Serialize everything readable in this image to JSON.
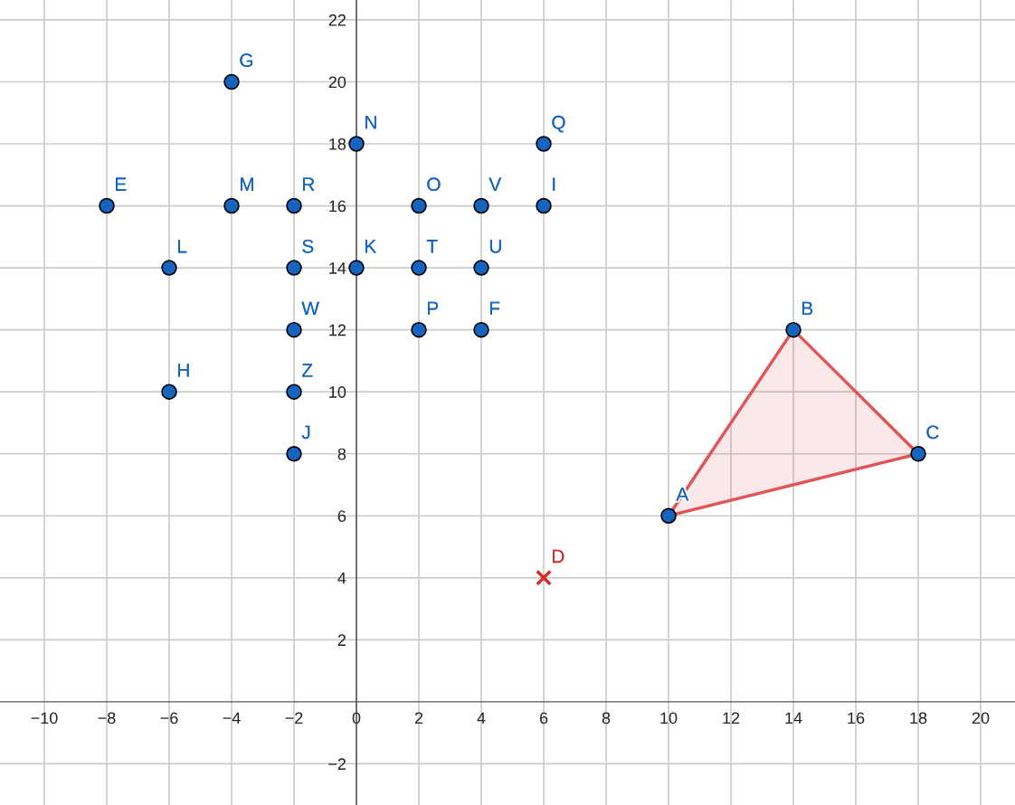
{
  "chart_data": {
    "type": "scatter",
    "xlim": [
      -11.42,
      21.1
    ],
    "ylim": [
      -3.33,
      22.64
    ],
    "xticks": [
      {
        "value": -10,
        "label": "−10"
      },
      {
        "value": -8,
        "label": "−8"
      },
      {
        "value": -6,
        "label": "−6"
      },
      {
        "value": -4,
        "label": "−4"
      },
      {
        "value": -2,
        "label": "−2"
      },
      0,
      2,
      4,
      6,
      8,
      10,
      12,
      14,
      16,
      18,
      20
    ],
    "yticks": [
      {
        "value": -2,
        "label": "−2"
      },
      2,
      4,
      6,
      8,
      10,
      12,
      14,
      16,
      18,
      20,
      22
    ],
    "grid": true,
    "series": [
      {
        "type": "area",
        "color": "#e05555",
        "x": [
          10,
          14,
          18,
          10
        ],
        "values": [
          6,
          12,
          8,
          6
        ]
      },
      {
        "color": "#1565c0",
        "marker": "circle",
        "x": [
          10,
          14,
          18,
          -8,
          4,
          -4,
          -6,
          6,
          -2,
          0,
          -6,
          -4,
          0,
          2,
          2,
          6,
          -2,
          -2,
          2,
          4,
          4,
          -2,
          -2
        ],
        "values": [
          6,
          12,
          8,
          16,
          12,
          20,
          10,
          16,
          8,
          14,
          14,
          16,
          18,
          16,
          12,
          18,
          16,
          14,
          14,
          14,
          16,
          12,
          10
        ]
      },
      {
        "color": "#d32f2f",
        "marker": "cross",
        "x": [
          6
        ],
        "values": [
          4
        ]
      }
    ],
    "annotations": [
      {
        "text": "A",
        "x": 10,
        "y": 6
      },
      {
        "text": "B",
        "x": 14,
        "y": 12
      },
      {
        "text": "C",
        "x": 18,
        "y": 8
      },
      {
        "text": "D",
        "x": 6,
        "y": 4
      },
      {
        "text": "E",
        "x": -8,
        "y": 16
      },
      {
        "text": "F",
        "x": 4,
        "y": 12
      },
      {
        "text": "G",
        "x": -4,
        "y": 20
      },
      {
        "text": "H",
        "x": -6,
        "y": 10
      },
      {
        "text": "I",
        "x": 6,
        "y": 16
      },
      {
        "text": "J",
        "x": -2,
        "y": 8
      },
      {
        "text": "K",
        "x": 0,
        "y": 14
      },
      {
        "text": "L",
        "x": -6,
        "y": 14
      },
      {
        "text": "M",
        "x": -4,
        "y": 16
      },
      {
        "text": "N",
        "x": 0,
        "y": 18
      },
      {
        "text": "O",
        "x": 2,
        "y": 16
      },
      {
        "text": "P",
        "x": 2,
        "y": 12
      },
      {
        "text": "Q",
        "x": 6,
        "y": 18
      },
      {
        "text": "R",
        "x": -2,
        "y": 16
      },
      {
        "text": "S",
        "x": -2,
        "y": 14
      },
      {
        "text": "T",
        "x": 2,
        "y": 14
      },
      {
        "text": "U",
        "x": 4,
        "y": 14
      },
      {
        "text": "V",
        "x": 4,
        "y": 16
      },
      {
        "text": "W",
        "x": -2,
        "y": 12
      },
      {
        "text": "Z",
        "x": -2,
        "y": 10
      }
    ]
  }
}
